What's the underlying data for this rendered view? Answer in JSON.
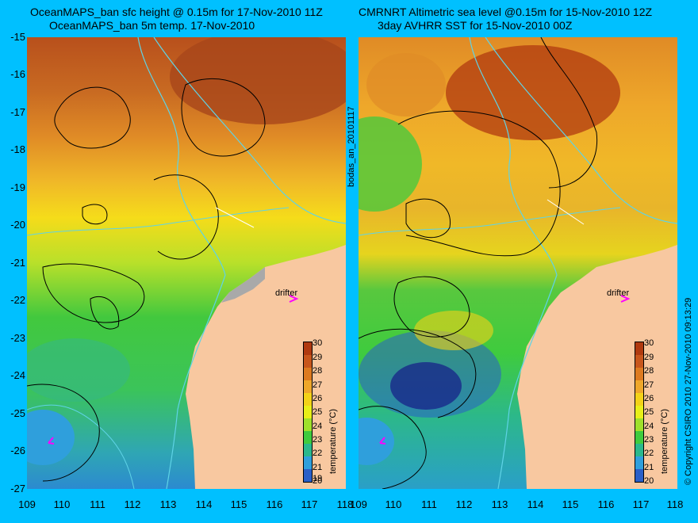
{
  "titles": {
    "left_line1": "OceanMAPS_ban sfc height @ 0.15m for 17-Nov-2010 11Z",
    "left_line2": "OceanMAPS_ban 5m temp. 17-Nov-2010",
    "right_line1": "CMRNRT Altimetric sea level  @0.15m  for 15-Nov-2010 12Z",
    "right_line2": "3day AVHRR SST for 15-Nov-2010 00Z"
  },
  "axes": {
    "y_ticks": [
      "-15",
      "-16",
      "-17",
      "-18",
      "-19",
      "-20",
      "-21",
      "-22",
      "-23",
      "-24",
      "-25",
      "-26",
      "-27"
    ],
    "x_ticks": [
      "109",
      "110",
      "111",
      "112",
      "113",
      "114",
      "115",
      "116",
      "117",
      "118"
    ]
  },
  "colorbar": {
    "label": "temperature (°C)",
    "ticks": [
      "30",
      "29",
      "28",
      "27",
      "26",
      "25",
      "24",
      "23",
      "22",
      "21",
      "20",
      "19"
    ],
    "colors": [
      "#b03a10",
      "#c8561c",
      "#dd7a20",
      "#eea72a",
      "#f3d218",
      "#e8ef18",
      "#9fe02a",
      "#3fcb3e",
      "#2ab88c",
      "#2f9fdc",
      "#2a5fc8",
      "#151b88"
    ]
  },
  "labels": {
    "drifter": "drifter",
    "middle_vertical": "bodas_an_20101117",
    "right_vertical": "© Copyright CSIRO 2010   27-Nov-2010 09:13:29"
  },
  "colors": {
    "background": "#00c0ff",
    "land": "#f8c8a0",
    "contour": "#000000",
    "bathymetry": "#5fd3e6",
    "drifter_marker": "#ff00ff"
  }
}
